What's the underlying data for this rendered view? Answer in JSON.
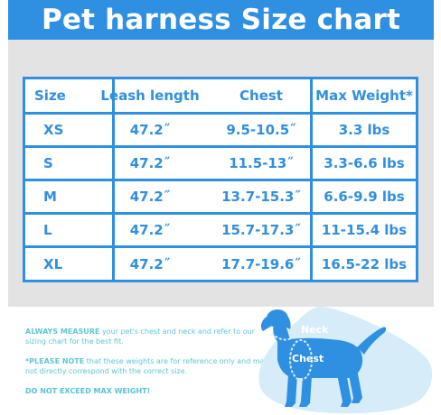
{
  "header": {
    "title": "Pet harness Size chart"
  },
  "table": {
    "headers": [
      "Size",
      "Leash length",
      "Chest",
      "Max Weight*"
    ],
    "rows": [
      {
        "size": "XS",
        "leash": "47.2˝",
        "chest": "9.5-10.5˝",
        "max": "3.3 lbs"
      },
      {
        "size": "S",
        "leash": "47.2˝",
        "chest": "11.5-13˝",
        "max": "3.3-6.6 lbs"
      },
      {
        "size": "M",
        "leash": "47.2˝",
        "chest": "13.7-15.3˝",
        "max": "6.6-9.9 lbs"
      },
      {
        "size": "L",
        "leash": "47.2˝",
        "chest": "15.7-17.3˝",
        "max": "11-15.4 lbs"
      },
      {
        "size": "XL",
        "leash": "47.2˝",
        "chest": "17.7-19.6˝",
        "max": "16.5-22 lbs"
      }
    ]
  },
  "notes": {
    "measure_bold": "ALWAYS MEASURE",
    "measure_text": " your pet's chest and neck and refer to our sizing chart for the best fit.",
    "please_bold": "*PLEASE NOTE",
    "please_text": " that these weights are for reference only and may not directly correspond with the correct size.",
    "warning": "DO NOT EXCEED MAX WEIGHT!"
  },
  "diagram": {
    "neck_label": "Neck",
    "chest_label": "Chest"
  },
  "colors": {
    "primary": "#2f8fe0",
    "panel": "#e3e3e3",
    "note": "#5cc6d6",
    "dog_bg": "#d6ecf8"
  }
}
